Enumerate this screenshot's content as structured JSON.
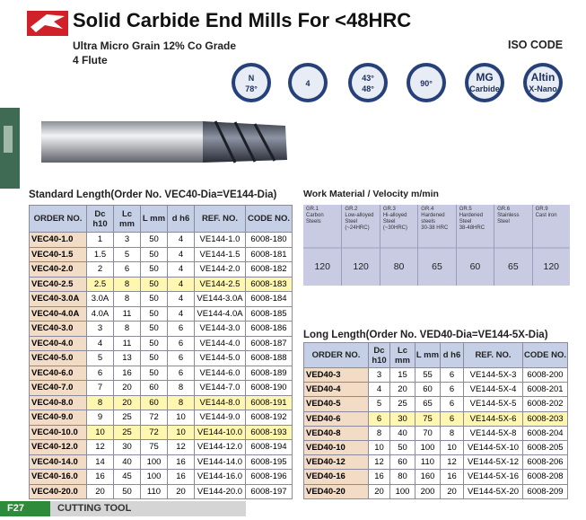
{
  "header": {
    "title": "Solid Carbide End Mills For <48HRC",
    "subtitle": "Ultra Micro Grain 12% Co Grade",
    "flutes": "4 Flute",
    "iso": "ISO CODE"
  },
  "icons": [
    [
      "N",
      "78°"
    ],
    [
      "4"
    ],
    [
      "43°",
      "48°"
    ],
    [
      "90°"
    ],
    [
      "MG",
      "Carbide"
    ],
    [
      "Altin",
      "X-Nano"
    ]
  ],
  "standard": {
    "caption": "Standard Length(Order No. VEC40-Dia=VE144-Dia)",
    "columns": [
      "ORDER NO.",
      "Dc h10",
      "Lc mm",
      "L mm",
      "d h6",
      "REF. NO.",
      "CODE NO."
    ],
    "highlighted_rows": [
      3,
      11,
      13
    ],
    "rows": [
      [
        "VEC40-1.0",
        "1",
        "3",
        "50",
        "4",
        "VE144-1.0",
        "6008-180"
      ],
      [
        "VEC40-1.5",
        "1.5",
        "5",
        "50",
        "4",
        "VE144-1.5",
        "6008-181"
      ],
      [
        "VEC40-2.0",
        "2",
        "6",
        "50",
        "4",
        "VE144-2.0",
        "6008-182"
      ],
      [
        "VEC40-2.5",
        "2.5",
        "8",
        "50",
        "4",
        "VE144-2.5",
        "6008-183"
      ],
      [
        "VEC40-3.0A",
        "3.0A",
        "8",
        "50",
        "4",
        "VE144-3.0A",
        "6008-184"
      ],
      [
        "VEC40-4.0A",
        "4.0A",
        "11",
        "50",
        "4",
        "VE144-4.0A",
        "6008-185"
      ],
      [
        "VEC40-3.0",
        "3",
        "8",
        "50",
        "6",
        "VE144-3.0",
        "6008-186"
      ],
      [
        "VEC40-4.0",
        "4",
        "11",
        "50",
        "6",
        "VE144-4.0",
        "6008-187"
      ],
      [
        "VEC40-5.0",
        "5",
        "13",
        "50",
        "6",
        "VE144-5.0",
        "6008-188"
      ],
      [
        "VEC40-6.0",
        "6",
        "16",
        "50",
        "6",
        "VE144-6.0",
        "6008-189"
      ],
      [
        "VEC40-7.0",
        "7",
        "20",
        "60",
        "8",
        "VE144-7.0",
        "6008-190"
      ],
      [
        "VEC40-8.0",
        "8",
        "20",
        "60",
        "8",
        "VE144-8.0",
        "6008-191"
      ],
      [
        "VEC40-9.0",
        "9",
        "25",
        "72",
        "10",
        "VE144-9.0",
        "6008-192"
      ],
      [
        "VEC40-10.0",
        "10",
        "25",
        "72",
        "10",
        "VE144-10.0",
        "6008-193"
      ],
      [
        "VEC40-12.0",
        "12",
        "30",
        "75",
        "12",
        "VE144-12.0",
        "6008-194"
      ],
      [
        "VEC40-14.0",
        "14",
        "40",
        "100",
        "16",
        "VE144-14.0",
        "6008-195"
      ],
      [
        "VEC40-16.0",
        "16",
        "45",
        "100",
        "16",
        "VE144-16.0",
        "6008-196"
      ],
      [
        "VEC40-20.0",
        "20",
        "50",
        "110",
        "20",
        "VE144-20.0",
        "6008-197"
      ]
    ]
  },
  "material": {
    "title": "Work Material / Velocity m/min",
    "groups": [
      [
        "GR.1",
        "Carbon",
        "Steels"
      ],
      [
        "GR.2",
        "Low-alloyed",
        "Steel",
        "(~24HRC)"
      ],
      [
        "GR.3",
        "Hi-alloyed",
        "Steel",
        "(~30HRC)"
      ],
      [
        "GR.4",
        "Hardened",
        "steels",
        "30-38 HRC"
      ],
      [
        "GR.5",
        "Hardened",
        "Steel",
        "38-48HRC"
      ],
      [
        "GR.6",
        "Stainless",
        "Steel"
      ],
      [
        "GR.9",
        "Cast iron"
      ]
    ],
    "velocity": [
      "120",
      "120",
      "80",
      "65",
      "60",
      "65",
      "120"
    ]
  },
  "long": {
    "caption": "Long Length(Order No. VED40-Dia=VE144-5X-Dia)",
    "columns": [
      "ORDER NO.",
      "Dc h10",
      "Lc mm",
      "L mm",
      "d h6",
      "REF. NO.",
      "CODE NO."
    ],
    "highlighted_rows": [
      3
    ],
    "rows": [
      [
        "VED40-3",
        "3",
        "15",
        "55",
        "6",
        "VE144-5X-3",
        "6008-200"
      ],
      [
        "VED40-4",
        "4",
        "20",
        "60",
        "6",
        "VE144-5X-4",
        "6008-201"
      ],
      [
        "VED40-5",
        "5",
        "25",
        "65",
        "6",
        "VE144-5X-5",
        "6008-202"
      ],
      [
        "VED40-6",
        "6",
        "30",
        "75",
        "6",
        "VE144-5X-6",
        "6008-203"
      ],
      [
        "VED40-8",
        "8",
        "40",
        "70",
        "8",
        "VE144-5X-8",
        "6008-204"
      ],
      [
        "VED40-10",
        "10",
        "50",
        "100",
        "10",
        "VE144-5X-10",
        "6008-205"
      ],
      [
        "VED40-12",
        "12",
        "60",
        "110",
        "12",
        "VE144-5X-12",
        "6008-206"
      ],
      [
        "VED40-16",
        "16",
        "80",
        "160",
        "16",
        "VE144-5X-16",
        "6008-208"
      ],
      [
        "VED40-20",
        "20",
        "100",
        "200",
        "20",
        "VE144-5X-20",
        "6008-209"
      ]
    ]
  },
  "footer": {
    "page": "F27",
    "section": "CUTTING TOOL"
  }
}
